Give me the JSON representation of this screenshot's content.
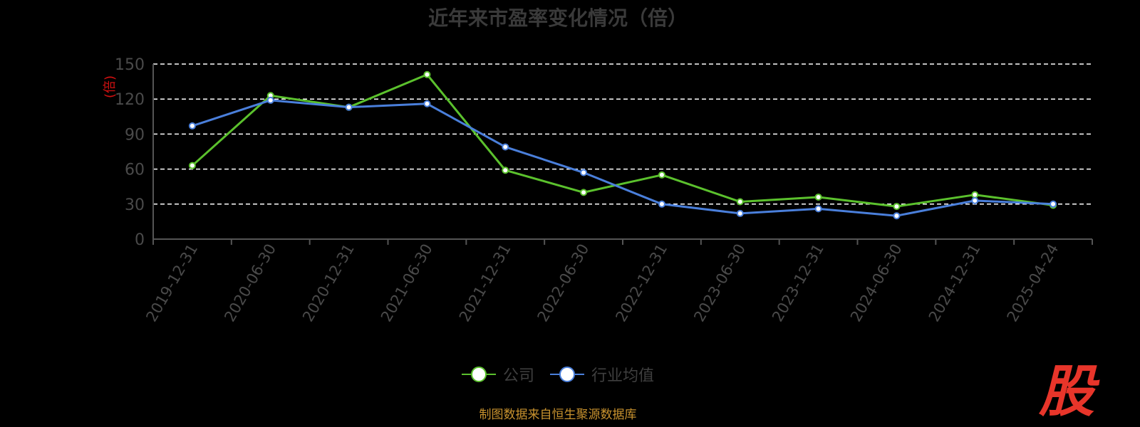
{
  "title": "近年来市盈率变化情况（倍）",
  "unit_label": "(倍)",
  "source": "制图数据来自恒生聚源数据库",
  "logo_text": "股",
  "legend": [
    {
      "name": "公司",
      "color": "#5bc12d"
    },
    {
      "name": "行业均值",
      "color": "#4a7fdb"
    }
  ],
  "chart_data": {
    "type": "line",
    "title": "近年来市盈率变化情况（倍）",
    "ylabel": "(倍)",
    "ylim": [
      0,
      150
    ],
    "yticks": [
      0,
      30,
      60,
      90,
      120,
      150
    ],
    "grid": true,
    "legend_position": "bottom",
    "categories": [
      "2019-12-31",
      "2020-06-30",
      "2020-12-31",
      "2021-06-30",
      "2021-12-31",
      "2022-06-30",
      "2022-12-31",
      "2023-06-30",
      "2023-12-31",
      "2024-06-30",
      "2024-12-31",
      "2025-04-24"
    ],
    "series": [
      {
        "name": "公司",
        "color": "#5bc12d",
        "values": [
          63,
          123,
          113,
          141,
          59,
          40,
          55,
          32,
          36,
          28,
          38,
          29
        ]
      },
      {
        "name": "行业均值",
        "color": "#4a7fdb",
        "values": [
          97,
          119,
          113,
          116,
          79,
          57,
          30,
          22,
          26,
          20,
          33,
          30
        ]
      }
    ]
  }
}
